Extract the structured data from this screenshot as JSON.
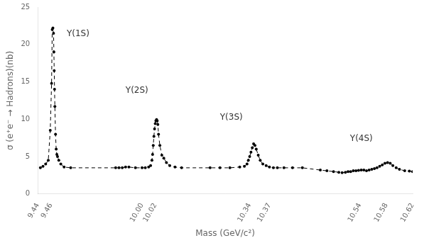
{
  "chart_data": {
    "type": "line",
    "xlabel": "Mass (GeV/c²)",
    "ylabel": "σ (e⁺e⁻ → Hadrons)(nb)",
    "x": [
      9.444,
      9.448,
      9.452,
      9.456,
      9.459,
      9.461,
      9.462,
      9.463,
      9.464,
      9.4645,
      9.465,
      9.4655,
      9.466,
      9.467,
      9.468,
      9.469,
      9.47,
      9.472,
      9.475,
      9.48,
      9.49,
      9.96,
      9.965,
      9.97,
      9.975,
      9.98,
      9.99,
      10.0,
      10.005,
      10.01,
      10.013,
      10.015,
      10.016,
      10.017,
      10.018,
      10.019,
      10.02,
      10.021,
      10.022,
      10.023,
      10.024,
      10.025,
      10.027,
      10.03,
      10.033,
      10.037,
      10.042,
      10.05,
      10.06,
      10.28,
      10.295,
      10.31,
      10.325,
      10.332,
      10.336,
      10.338,
      10.34,
      10.342,
      10.344,
      10.346,
      10.348,
      10.35,
      10.353,
      10.356,
      10.36,
      10.365,
      10.37,
      10.376,
      10.382,
      10.392,
      10.405,
      10.42,
      10.48,
      10.49,
      10.5,
      10.508,
      10.513,
      10.518,
      10.522,
      10.526,
      10.53,
      10.534,
      10.538,
      10.542,
      10.546,
      10.55,
      10.554,
      10.558,
      10.562,
      10.566,
      10.57,
      10.574,
      10.578,
      10.582,
      10.586,
      10.59,
      10.595,
      10.6,
      10.608,
      10.615,
      10.62
    ],
    "series": [
      {
        "color": "#000000",
        "line_style": "dashed",
        "marker": "circle",
        "values": [
          3.5,
          3.7,
          4.0,
          4.5,
          8.5,
          14.8,
          22.0,
          22.2,
          21.5,
          19.0,
          16.5,
          14.0,
          11.7,
          8.0,
          6.0,
          5.3,
          5.0,
          4.5,
          4.0,
          3.6,
          3.5,
          3.5,
          3.5,
          3.5,
          3.6,
          3.6,
          3.5,
          3.5,
          3.5,
          3.6,
          3.8,
          4.5,
          5.3,
          6.5,
          7.7,
          8.7,
          9.4,
          9.8,
          9.95,
          9.8,
          9.3,
          8.0,
          6.5,
          5.2,
          4.8,
          4.2,
          3.8,
          3.6,
          3.5,
          3.5,
          3.5,
          3.5,
          3.6,
          3.7,
          4.0,
          4.5,
          5.0,
          5.6,
          6.2,
          6.7,
          6.5,
          6.0,
          5.2,
          4.5,
          4.0,
          3.8,
          3.6,
          3.5,
          3.5,
          3.5,
          3.5,
          3.5,
          3.2,
          3.1,
          3.0,
          2.9,
          2.85,
          2.9,
          3.0,
          3.0,
          3.1,
          3.1,
          3.15,
          3.2,
          3.2,
          3.1,
          3.2,
          3.3,
          3.4,
          3.5,
          3.7,
          3.9,
          4.1,
          4.2,
          4.1,
          3.8,
          3.5,
          3.3,
          3.1,
          3.05,
          3.0
        ]
      }
    ],
    "xlim": [
      9.44,
      10.62
    ],
    "xticks": [
      9.44,
      9.46,
      {
        "value": 10.0,
        "label": "10.00"
      },
      10.02,
      10.34,
      10.37,
      10.54,
      10.58,
      10.62
    ],
    "ylim": [
      0,
      25
    ],
    "yticks": [
      0,
      5,
      10,
      15,
      20,
      25
    ],
    "grid": false,
    "annotations": [
      {
        "text": "Υ(1S)",
        "x": 9.484,
        "y": 20.8
      },
      {
        "text": "Υ(2S)",
        "x": 9.975,
        "y": 13.3
      },
      {
        "text": "Υ(3S)",
        "x": 10.295,
        "y": 9.7
      },
      {
        "text": "Υ(4S)",
        "x": 10.525,
        "y": 6.8
      }
    ]
  }
}
